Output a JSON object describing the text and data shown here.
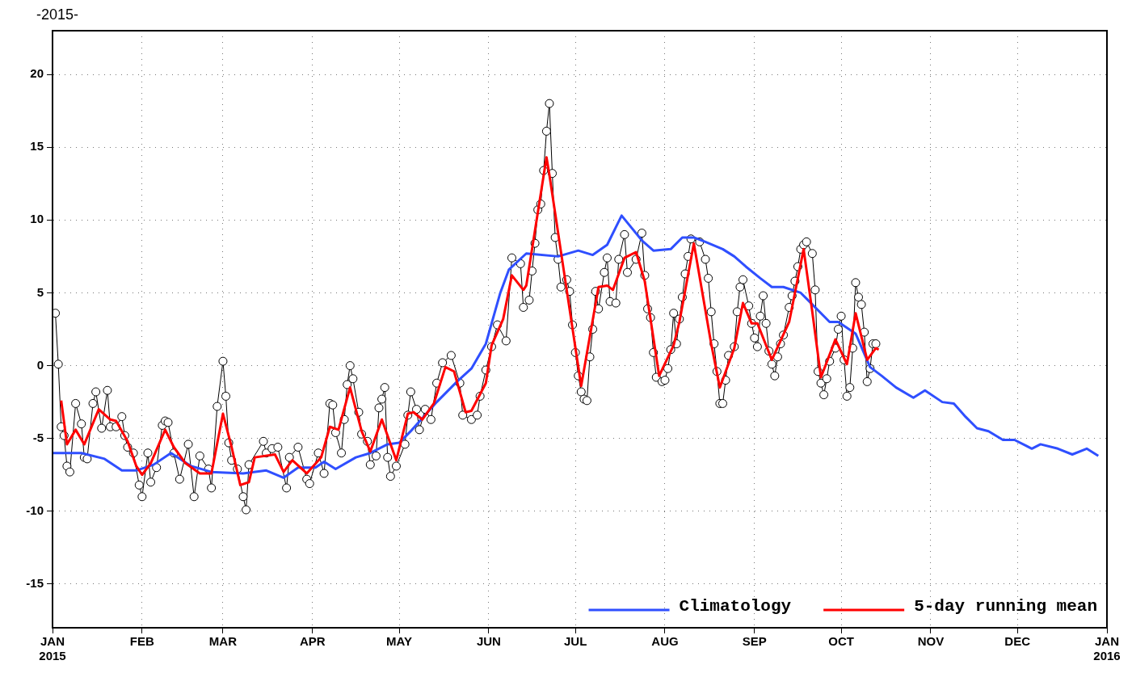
{
  "chart_data": {
    "type": "line",
    "title": "-2015-",
    "xlim": [
      "2015-01-01",
      "2016-01-01"
    ],
    "xticks": [
      {
        "value": "2015-01-01",
        "label": "JAN\n2015"
      },
      {
        "value": "2015-02-01",
        "label": "FEB"
      },
      {
        "value": "2015-03-01",
        "label": "MAR"
      },
      {
        "value": "2015-04-01",
        "label": "APR"
      },
      {
        "value": "2015-05-01",
        "label": "MAY"
      },
      {
        "value": "2015-06-01",
        "label": "JUN"
      },
      {
        "value": "2015-07-01",
        "label": "JUL"
      },
      {
        "value": "2015-08-01",
        "label": "AUG"
      },
      {
        "value": "2015-09-01",
        "label": "SEP"
      },
      {
        "value": "2015-10-01",
        "label": "OCT"
      },
      {
        "value": "2015-11-01",
        "label": "NOV"
      },
      {
        "value": "2015-12-01",
        "label": "DEC"
      },
      {
        "value": "2016-01-01",
        "label": "JAN\n2016"
      }
    ],
    "ylim": [
      -18,
      23
    ],
    "yticks": [
      -15,
      -10,
      -5,
      0,
      5,
      10,
      15,
      20
    ],
    "grid": true,
    "legend": "bottom right",
    "series": [
      {
        "color": "#000000",
        "marker": "circle",
        "x": [
          "2015-01-02",
          "2015-01-03",
          "2015-01-04",
          "2015-01-05",
          "2015-01-06",
          "2015-01-07",
          "2015-01-09",
          "2015-01-11",
          "2015-01-12",
          "2015-01-13",
          "2015-01-15",
          "2015-01-16",
          "2015-01-18",
          "2015-01-20",
          "2015-01-21",
          "2015-01-23",
          "2015-01-25",
          "2015-01-26",
          "2015-01-27",
          "2015-01-29",
          "2015-01-31",
          "2015-02-01",
          "2015-02-03",
          "2015-02-04",
          "2015-02-06",
          "2015-02-08",
          "2015-02-09",
          "2015-02-10",
          "2015-02-12",
          "2015-02-14",
          "2015-02-17",
          "2015-02-19",
          "2015-02-21",
          "2015-02-24",
          "2015-02-25",
          "2015-02-27",
          "2015-03-01",
          "2015-03-02",
          "2015-03-03",
          "2015-03-04",
          "2015-03-06",
          "2015-03-08",
          "2015-03-09",
          "2015-03-10",
          "2015-03-15",
          "2015-03-16",
          "2015-03-18",
          "2015-03-20",
          "2015-03-23",
          "2015-03-24",
          "2015-03-27",
          "2015-03-30",
          "2015-03-31",
          "2015-04-03",
          "2015-04-05",
          "2015-04-07",
          "2015-04-08",
          "2015-04-09",
          "2015-04-11",
          "2015-04-12",
          "2015-04-13",
          "2015-04-14",
          "2015-04-15",
          "2015-04-17",
          "2015-04-18",
          "2015-04-20",
          "2015-04-21",
          "2015-04-23",
          "2015-04-24",
          "2015-04-25",
          "2015-04-26",
          "2015-04-27",
          "2015-04-28",
          "2015-04-30",
          "2015-05-03",
          "2015-05-04",
          "2015-05-05",
          "2015-05-07",
          "2015-05-08",
          "2015-05-10",
          "2015-05-12",
          "2015-05-14",
          "2015-05-16",
          "2015-05-19",
          "2015-05-22",
          "2015-05-23",
          "2015-05-26",
          "2015-05-28",
          "2015-05-29",
          "2015-05-31",
          "2015-06-02",
          "2015-06-04",
          "2015-06-07",
          "2015-06-09",
          "2015-06-12",
          "2015-06-13",
          "2015-06-15",
          "2015-06-16",
          "2015-06-17",
          "2015-06-18",
          "2015-06-19",
          "2015-06-20",
          "2015-06-21",
          "2015-06-22",
          "2015-06-23",
          "2015-06-24",
          "2015-06-25",
          "2015-06-26",
          "2015-06-28",
          "2015-06-29",
          "2015-06-30",
          "2015-07-01",
          "2015-07-02",
          "2015-07-03",
          "2015-07-04",
          "2015-07-05",
          "2015-07-06",
          "2015-07-07",
          "2015-07-08",
          "2015-07-09",
          "2015-07-11",
          "2015-07-12",
          "2015-07-13",
          "2015-07-15",
          "2015-07-16",
          "2015-07-18",
          "2015-07-19",
          "2015-07-22",
          "2015-07-24",
          "2015-07-25",
          "2015-07-26",
          "2015-07-27",
          "2015-07-28",
          "2015-07-29",
          "2015-07-31",
          "2015-08-01",
          "2015-08-02",
          "2015-08-03",
          "2015-08-04",
          "2015-08-05",
          "2015-08-06",
          "2015-08-07",
          "2015-08-08",
          "2015-08-09",
          "2015-08-10",
          "2015-08-13",
          "2015-08-15",
          "2015-08-16",
          "2015-08-17",
          "2015-08-18",
          "2015-08-19",
          "2015-08-20",
          "2015-08-21",
          "2015-08-22",
          "2015-08-23",
          "2015-08-25",
          "2015-08-26",
          "2015-08-27",
          "2015-08-28",
          "2015-08-30",
          "2015-08-31",
          "2015-09-01",
          "2015-09-02",
          "2015-09-03",
          "2015-09-04",
          "2015-09-05",
          "2015-09-06",
          "2015-09-07",
          "2015-09-08",
          "2015-09-09",
          "2015-09-10",
          "2015-09-11",
          "2015-09-13",
          "2015-09-14",
          "2015-09-15",
          "2015-09-16",
          "2015-09-17",
          "2015-09-18",
          "2015-09-19",
          "2015-09-21",
          "2015-09-22",
          "2015-09-23",
          "2015-09-24",
          "2015-09-25",
          "2015-09-26",
          "2015-09-27",
          "2015-09-29",
          "2015-09-30",
          "2015-10-01",
          "2015-10-02",
          "2015-10-03",
          "2015-10-04",
          "2015-10-05",
          "2015-10-06",
          "2015-10-07",
          "2015-10-08",
          "2015-10-09",
          "2015-10-10",
          "2015-10-11",
          "2015-10-12",
          "2015-10-13"
        ],
        "values": [
          3.6,
          0.1,
          -4.2,
          -4.8,
          -6.9,
          -7.3,
          -2.6,
          -4.0,
          -6.3,
          -6.4,
          -2.6,
          -1.8,
          -4.3,
          -1.7,
          -4.2,
          -4.2,
          -3.5,
          -4.8,
          -5.6,
          -6.0,
          -8.2,
          -9.0,
          -6.0,
          -8.0,
          -7.0,
          -4.1,
          -3.8,
          -3.9,
          -6.0,
          -7.8,
          -5.4,
          -9.0,
          -6.2,
          -7.1,
          -8.4,
          -2.8,
          0.3,
          -2.1,
          -5.3,
          -6.5,
          -7.1,
          -9.0,
          -9.9,
          -6.8,
          -5.2,
          -6.0,
          -5.7,
          -5.6,
          -8.4,
          -6.3,
          -5.6,
          -7.8,
          -8.1,
          -6.0,
          -7.4,
          -2.6,
          -2.7,
          -4.6,
          -6.0,
          -3.7,
          -1.3,
          0.0,
          -0.9,
          -3.2,
          -4.7,
          -5.2,
          -6.8,
          -6.2,
          -2.9,
          -2.3,
          -1.5,
          -6.3,
          -7.6,
          -6.9,
          -5.4,
          -3.4,
          -1.8,
          -3.0,
          -4.4,
          -3.0,
          -3.7,
          -1.2,
          0.2,
          0.7,
          -1.2,
          -3.4,
          -3.7,
          -3.4,
          -2.1,
          -0.3,
          1.3,
          2.8,
          1.7,
          7.4,
          7.0,
          4.0,
          4.5,
          6.5,
          8.4,
          10.7,
          11.1,
          13.4,
          16.1,
          18.0,
          13.2,
          8.8,
          7.3,
          5.4,
          5.9,
          5.1,
          2.8,
          0.9,
          -0.7,
          -1.8,
          -2.3,
          -2.4,
          0.6,
          2.5,
          5.1,
          3.9,
          6.4,
          7.4,
          4.4,
          4.3,
          7.3,
          9.0,
          6.4,
          7.3,
          9.1,
          6.2,
          3.9,
          3.3,
          0.9,
          -0.8,
          -1.1,
          -1.0,
          -0.2,
          1.1,
          3.6,
          1.5,
          3.2,
          4.7,
          6.3,
          7.5,
          8.7,
          8.5,
          7.3,
          6.0,
          3.7,
          1.5,
          -0.4,
          -2.6,
          -2.6,
          -1.0,
          0.7,
          1.3,
          3.7,
          5.4,
          5.9,
          4.1,
          2.9,
          1.9,
          1.3,
          3.4,
          4.8,
          2.9,
          1.0,
          0.1,
          -0.7,
          0.6,
          1.5,
          2.1,
          4.0,
          4.8,
          5.8,
          6.8,
          8.0,
          8.3,
          8.5,
          7.7,
          5.2,
          -0.4,
          -1.2,
          -2.0,
          -0.9,
          0.3,
          1.2,
          2.5,
          3.4,
          0.4,
          -2.1,
          -1.5,
          1.2,
          5.7,
          4.7,
          4.2,
          2.3,
          -1.1,
          -0.2,
          1.5,
          1.5
        ]
      },
      {
        "name": "Climatology",
        "color": "#2f4fff",
        "x": [
          "2015-01-01",
          "2015-01-11",
          "2015-01-19",
          "2015-01-25",
          "2015-01-30",
          "2015-02-05",
          "2015-02-11",
          "2015-02-18",
          "2015-02-25",
          "2015-03-08",
          "2015-03-16",
          "2015-03-22",
          "2015-03-27",
          "2015-04-02",
          "2015-04-05",
          "2015-04-09",
          "2015-04-16",
          "2015-04-21",
          "2015-04-27",
          "2015-05-01",
          "2015-05-05",
          "2015-05-14",
          "2015-05-21",
          "2015-05-26",
          "2015-05-31",
          "2015-06-05",
          "2015-06-08",
          "2015-06-14",
          "2015-06-25",
          "2015-07-02",
          "2015-07-07",
          "2015-07-12",
          "2015-07-17",
          "2015-07-24",
          "2015-07-28",
          "2015-08-03",
          "2015-08-07",
          "2015-08-11",
          "2015-08-15",
          "2015-08-21",
          "2015-08-25",
          "2015-08-29",
          "2015-09-03",
          "2015-09-07",
          "2015-09-11",
          "2015-09-17",
          "2015-09-19",
          "2015-09-27",
          "2015-09-30",
          "2015-10-06",
          "2015-10-11",
          "2015-10-15",
          "2015-10-20",
          "2015-10-26",
          "2015-10-30",
          "2015-11-05",
          "2015-11-09",
          "2015-11-13",
          "2015-11-17",
          "2015-11-21",
          "2015-11-26",
          "2015-11-30",
          "2015-12-06",
          "2015-12-09",
          "2015-12-15",
          "2015-12-20",
          "2015-12-25",
          "2015-12-29"
        ],
        "values": [
          -6.0,
          -6.0,
          -6.4,
          -7.2,
          -7.2,
          -6.8,
          -6.0,
          -6.9,
          -7.3,
          -7.4,
          -7.2,
          -7.7,
          -7.0,
          -7.0,
          -6.6,
          -7.1,
          -6.3,
          -6.0,
          -5.4,
          -5.3,
          -4.5,
          -2.5,
          -1.1,
          -0.2,
          1.5,
          5.0,
          6.6,
          7.7,
          7.5,
          7.9,
          7.6,
          8.3,
          10.3,
          8.6,
          7.9,
          8.0,
          8.8,
          8.8,
          8.5,
          8.0,
          7.5,
          6.8,
          6.0,
          5.4,
          5.4,
          5.0,
          4.6,
          3.0,
          3.0,
          2.2,
          -0.1,
          -0.7,
          -1.5,
          -2.2,
          -1.7,
          -2.5,
          -2.6,
          -3.5,
          -4.3,
          -4.5,
          -5.1,
          -5.1,
          -5.7,
          -5.4,
          -5.7,
          -6.1,
          -5.7,
          -6.2
        ]
      },
      {
        "name": "5-day running mean",
        "color": "#ff0000",
        "x": [
          "2015-01-04",
          "2015-01-06",
          "2015-01-09",
          "2015-01-12",
          "2015-01-17",
          "2015-01-21",
          "2015-01-23",
          "2015-01-27",
          "2015-01-30",
          "2015-02-01",
          "2015-02-04",
          "2015-02-09",
          "2015-02-12",
          "2015-02-16",
          "2015-02-21",
          "2015-02-25",
          "2015-03-01",
          "2015-03-04",
          "2015-03-07",
          "2015-03-10",
          "2015-03-12",
          "2015-03-19",
          "2015-03-22",
          "2015-03-25",
          "2015-03-30",
          "2015-04-04",
          "2015-04-07",
          "2015-04-10",
          "2015-04-14",
          "2015-04-18",
          "2015-04-21",
          "2015-04-25",
          "2015-04-30",
          "2015-05-04",
          "2015-05-06",
          "2015-05-09",
          "2015-05-13",
          "2015-05-17",
          "2015-05-20",
          "2015-05-24",
          "2015-05-26",
          "2015-05-31",
          "2015-06-02",
          "2015-06-06",
          "2015-06-09",
          "2015-06-13",
          "2015-06-14",
          "2015-06-21",
          "2015-06-22",
          "2015-06-27",
          "2015-07-03",
          "2015-07-09",
          "2015-07-12",
          "2015-07-14",
          "2015-07-18",
          "2015-07-22",
          "2015-07-25",
          "2015-07-30",
          "2015-08-04",
          "2015-08-06",
          "2015-08-11",
          "2015-08-17",
          "2015-08-20",
          "2015-08-25",
          "2015-08-28",
          "2015-08-31",
          "2015-09-02",
          "2015-09-07",
          "2015-09-13",
          "2015-09-18",
          "2015-09-21",
          "2015-09-24",
          "2015-09-29",
          "2015-10-03",
          "2015-10-06",
          "2015-10-10",
          "2015-10-13",
          "2015-10-14"
        ],
        "values": [
          -2.4,
          -5.4,
          -4.4,
          -5.4,
          -3.0,
          -3.7,
          -3.8,
          -5.2,
          -6.9,
          -7.5,
          -6.7,
          -4.4,
          -5.6,
          -6.7,
          -7.4,
          -7.4,
          -3.3,
          -5.6,
          -8.2,
          -8.0,
          -6.3,
          -6.1,
          -7.3,
          -6.5,
          -7.4,
          -6.3,
          -4.2,
          -4.4,
          -1.5,
          -4.5,
          -5.9,
          -3.7,
          -6.5,
          -3.3,
          -3.2,
          -3.7,
          -2.6,
          -0.1,
          -0.4,
          -3.2,
          -3.1,
          -1.2,
          1.4,
          3.2,
          6.2,
          5.2,
          5.5,
          14.3,
          13.1,
          6.5,
          -1.4,
          5.4,
          5.5,
          5.2,
          7.4,
          7.8,
          5.8,
          -0.7,
          1.4,
          3.0,
          8.4,
          1.5,
          -1.5,
          1.2,
          4.3,
          2.9,
          2.9,
          0.4,
          3.0,
          8.0,
          3.7,
          -0.8,
          1.8,
          0.1,
          3.6,
          0.4,
          1.2,
          1.1
        ]
      }
    ]
  }
}
